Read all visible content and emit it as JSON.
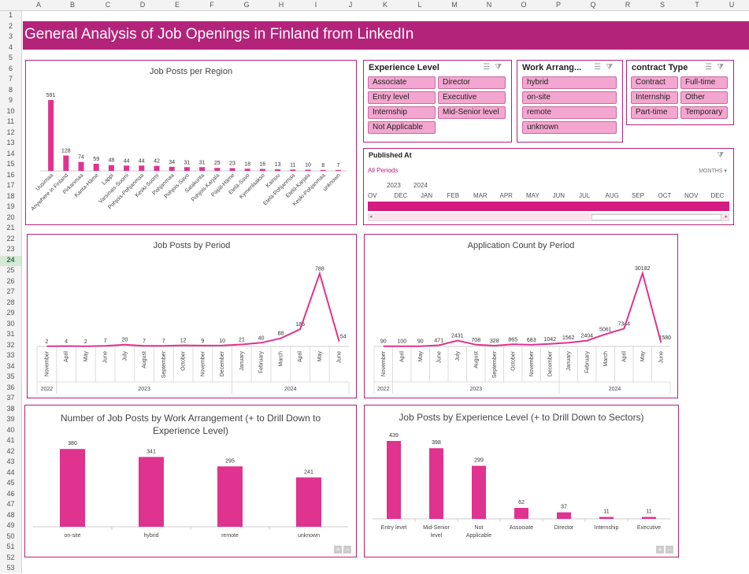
{
  "sheet": {
    "columns": [
      "A",
      "B",
      "C",
      "D",
      "E",
      "F",
      "G",
      "H",
      "I",
      "J",
      "K",
      "L",
      "M",
      "N",
      "O",
      "P",
      "Q",
      "R",
      "S",
      "T",
      "U"
    ],
    "rows": [
      "1",
      "2",
      "3",
      "4",
      "5",
      "6",
      "7",
      "8",
      "9",
      "10",
      "11",
      "12",
      "13",
      "14",
      "15",
      "16",
      "17",
      "18",
      "19",
      "20",
      "21",
      "22",
      "23",
      "24",
      "25",
      "26",
      "27",
      "28",
      "29",
      "30",
      "31",
      "32",
      "33",
      "34",
      "35",
      "36",
      "37",
      "38",
      "39",
      "40",
      "41",
      "42",
      "43",
      "44",
      "45",
      "46",
      "47",
      "48",
      "49",
      "50",
      "51",
      "52",
      "53"
    ],
    "selected_row": "24"
  },
  "dashboard": {
    "title": "General Analysis of Job Openings in Finland from LinkedIn",
    "accent": "#b4237a",
    "bar_color": "#e0338f"
  },
  "slicers": {
    "experience": {
      "title": "Experience Level",
      "items": [
        "Associate",
        "Director",
        "Entry level",
        "Executive",
        "Internship",
        "Mid-Senior level",
        "Not Applicable"
      ]
    },
    "work": {
      "title": "Work Arrang...",
      "items": [
        "hybrid",
        "on-site",
        "remote",
        "unknown"
      ]
    },
    "contract": {
      "title": "contract Type",
      "items": [
        "Contract",
        "Full-time",
        "Internship",
        "Other",
        "Part-time",
        "Temporary"
      ]
    }
  },
  "timeline": {
    "title": "Published At",
    "filter": "All Periods",
    "level": "MONTHS",
    "years": [
      "2023",
      "2024"
    ],
    "months": [
      "OV",
      "DEC",
      "JAN",
      "FEB",
      "MAR",
      "APR",
      "MAY",
      "JUN",
      "JUL",
      "AUG",
      "SEP",
      "OCT",
      "NOV",
      "DEC"
    ]
  },
  "chart_data": [
    {
      "id": "region",
      "type": "bar",
      "title": "Job Posts per Region",
      "categories": [
        "Uusimaa",
        "Anywhere in Finland",
        "Pirkanmaa",
        "Kanta-Häme",
        "Lappi",
        "Varsinais-Suomi",
        "Pohjois-Pohjanmaa",
        "Keski-Suomi",
        "Pohjanmaa",
        "Pohjois-Savo",
        "Satakunta",
        "Pohjois-Karjala",
        "Päijät-Häme",
        "Etelä-Savo",
        "Kymenlaakso",
        "Kainuu",
        "Etelä-Pohjanmaa",
        "Etelä-Karjala",
        "Keski-Pohjanmaa",
        "unknown"
      ],
      "values": [
        591,
        128,
        74,
        59,
        48,
        44,
        44,
        42,
        34,
        31,
        31,
        25,
        23,
        18,
        16,
        13,
        11,
        10,
        8,
        7
      ]
    },
    {
      "id": "posts_period",
      "type": "line",
      "title": "Job Posts by Period",
      "categories": [
        "November",
        "April",
        "May",
        "June",
        "July",
        "August",
        "September",
        "October",
        "November",
        "December",
        "January",
        "February",
        "March",
        "April",
        "May",
        "June"
      ],
      "values": [
        2,
        4,
        2,
        7,
        20,
        7,
        7,
        12,
        9,
        10,
        21,
        40,
        88,
        186,
        788,
        54
      ],
      "years": [
        {
          "label": "2022",
          "start": 0,
          "end": 0
        },
        {
          "label": "2023",
          "start": 1,
          "end": 9
        },
        {
          "label": "2024",
          "start": 10,
          "end": 15
        }
      ]
    },
    {
      "id": "apps_period",
      "type": "line",
      "title": "Application Count by Period",
      "categories": [
        "November",
        "April",
        "May",
        "June",
        "July",
        "August",
        "September",
        "October",
        "November",
        "December",
        "January",
        "February",
        "March",
        "April",
        "May",
        "June"
      ],
      "values": [
        90,
        100,
        90,
        471,
        2431,
        708,
        328,
        865,
        683,
        1042,
        1562,
        2404,
        5061,
        7344,
        30182,
        1580
      ],
      "years": [
        {
          "label": "2022",
          "start": 0,
          "end": 0
        },
        {
          "label": "2023",
          "start": 1,
          "end": 9
        },
        {
          "label": "2024",
          "start": 10,
          "end": 15
        }
      ]
    },
    {
      "id": "work",
      "type": "bar",
      "title": "Number of Job Posts by Work Arrangement (+ to Drill Down to Experience Level)",
      "categories": [
        "on-site",
        "hybrid",
        "remote",
        "unknown"
      ],
      "values": [
        380,
        341,
        295,
        241
      ]
    },
    {
      "id": "experience",
      "type": "bar",
      "title": "Job Posts by Experience Level (+ to Drill Down to Sectors)",
      "categories": [
        "Entry level",
        "Mid-Senior level",
        "Not Applicable",
        "Associate",
        "Director",
        "Internship",
        "Executive"
      ],
      "values": [
        439,
        398,
        299,
        62,
        37,
        11,
        11
      ]
    }
  ]
}
